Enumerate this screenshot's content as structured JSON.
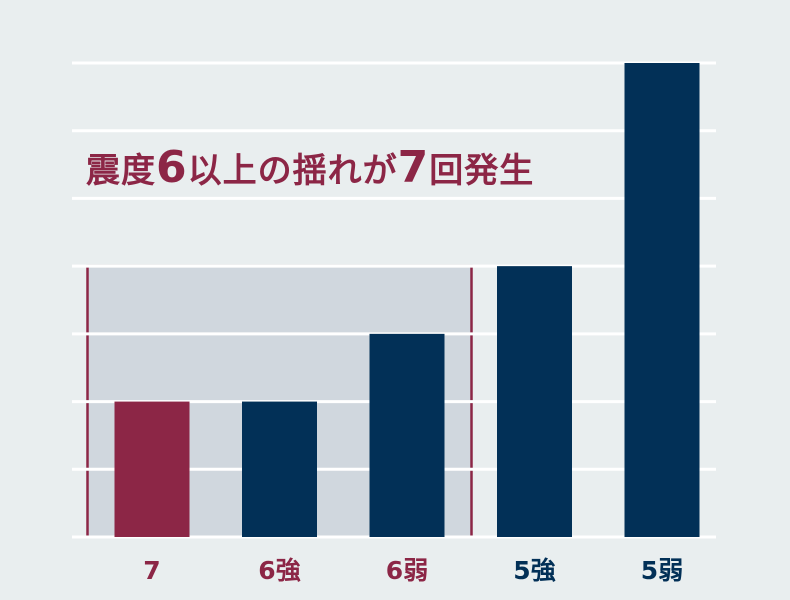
{
  "chart_data": {
    "type": "bar",
    "title": "",
    "xlabel": "",
    "ylabel": "",
    "categories": [
      "7",
      "6強",
      "6弱",
      "5強",
      "5弱"
    ],
    "values": [
      2,
      2,
      3,
      4,
      7
    ],
    "ylim": [
      0,
      7
    ],
    "grid": true,
    "bar_colors": [
      "#8c2646",
      "#023057",
      "#023057",
      "#023057",
      "#023057"
    ],
    "label_colors": [
      "#8c2646",
      "#8c2646",
      "#8c2646",
      "#023057",
      "#023057"
    ],
    "highlight": {
      "categories": [
        "7",
        "6強",
        "6弱"
      ],
      "fill": "#d0d7de",
      "border": "#8c2646"
    },
    "annotation": {
      "parts": [
        "震度",
        "6",
        "以上の揺れが",
        "7",
        "回発生"
      ],
      "color": "#8c2646"
    },
    "background": "#e9eeef",
    "gridline_color": "#ffffff"
  }
}
